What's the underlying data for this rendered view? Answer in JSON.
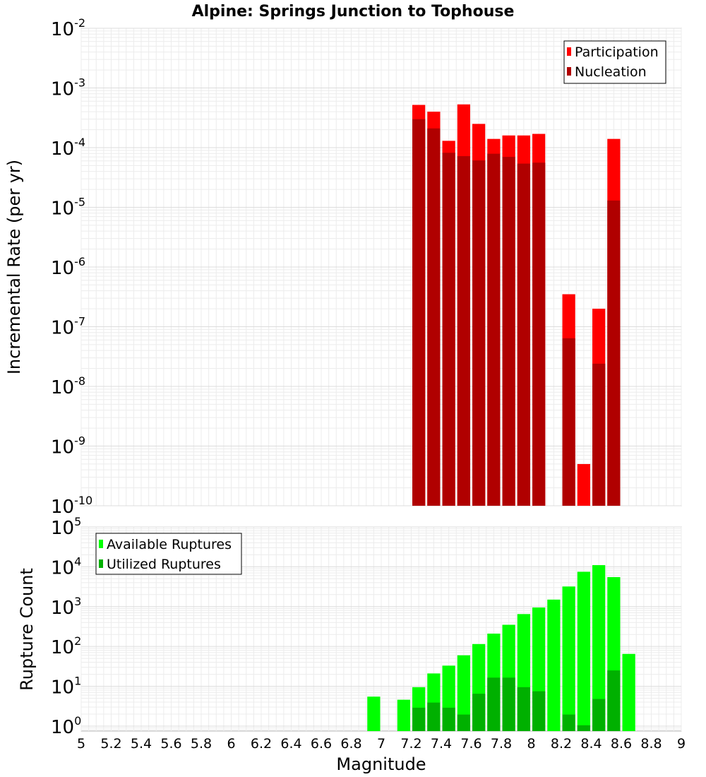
{
  "chart_data": [
    {
      "type": "bar",
      "title": "Alpine: Springs Junction to Tophouse",
      "xlabel": "",
      "ylabel": "Incremental Rate (per yr)",
      "yscale": "log",
      "ylim": [
        1e-10,
        0.01
      ],
      "xlim": [
        5,
        9
      ],
      "grid": true,
      "legend_position": "top-right",
      "bin_width": 0.1,
      "series": [
        {
          "name": "Participation",
          "color": "#ff0000",
          "points": [
            {
              "x": 7.25,
              "y": 0.00052
            },
            {
              "x": 7.35,
              "y": 0.0004
            },
            {
              "x": 7.45,
              "y": 0.00013
            },
            {
              "x": 7.55,
              "y": 0.00053
            },
            {
              "x": 7.65,
              "y": 0.00025
            },
            {
              "x": 7.75,
              "y": 0.00014
            },
            {
              "x": 7.85,
              "y": 0.00016
            },
            {
              "x": 7.95,
              "y": 0.00016
            },
            {
              "x": 8.05,
              "y": 0.00017
            },
            {
              "x": 8.25,
              "y": 3.5e-07
            },
            {
              "x": 8.35,
              "y": 5e-10
            },
            {
              "x": 8.45,
              "y": 2e-07
            },
            {
              "x": 8.55,
              "y": 0.00014
            }
          ]
        },
        {
          "name": "Nucleation",
          "color": "#b00000",
          "points": [
            {
              "x": 7.25,
              "y": 0.0003
            },
            {
              "x": 7.35,
              "y": 0.00021
            },
            {
              "x": 7.45,
              "y": 8.2e-05
            },
            {
              "x": 7.55,
              "y": 7.2e-05
            },
            {
              "x": 7.65,
              "y": 6.1e-05
            },
            {
              "x": 7.75,
              "y": 7.9e-05
            },
            {
              "x": 7.85,
              "y": 7e-05
            },
            {
              "x": 7.95,
              "y": 5.4e-05
            },
            {
              "x": 8.05,
              "y": 5.6e-05
            },
            {
              "x": 8.25,
              "y": 6.4e-08
            },
            {
              "x": 8.45,
              "y": 2.4e-08
            },
            {
              "x": 8.55,
              "y": 1.3e-05
            }
          ]
        }
      ]
    },
    {
      "type": "bar",
      "title": "",
      "xlabel": "Magnitude",
      "ylabel": "Rupture Count",
      "yscale": "log",
      "ylim": [
        0.75,
        100000
      ],
      "xlim": [
        5,
        9
      ],
      "grid": true,
      "legend_position": "top-left",
      "bin_width": 0.1,
      "series": [
        {
          "name": "Available Ruptures",
          "color": "#00ff00",
          "points": [
            {
              "x": 6.95,
              "y": 5.5
            },
            {
              "x": 7.15,
              "y": 4.6
            },
            {
              "x": 7.25,
              "y": 9.5
            },
            {
              "x": 7.35,
              "y": 21
            },
            {
              "x": 7.45,
              "y": 33
            },
            {
              "x": 7.55,
              "y": 60
            },
            {
              "x": 7.65,
              "y": 115
            },
            {
              "x": 7.75,
              "y": 210
            },
            {
              "x": 7.85,
              "y": 350
            },
            {
              "x": 7.95,
              "y": 650
            },
            {
              "x": 8.05,
              "y": 950
            },
            {
              "x": 8.15,
              "y": 1500
            },
            {
              "x": 8.25,
              "y": 3200
            },
            {
              "x": 8.35,
              "y": 7500
            },
            {
              "x": 8.45,
              "y": 11000
            },
            {
              "x": 8.55,
              "y": 5500
            },
            {
              "x": 8.65,
              "y": 65
            }
          ]
        },
        {
          "name": "Utilized Ruptures",
          "color": "#00b000",
          "points": [
            {
              "x": 7.25,
              "y": 2.9
            },
            {
              "x": 7.35,
              "y": 3.9
            },
            {
              "x": 7.45,
              "y": 2.9
            },
            {
              "x": 7.55,
              "y": 1.95
            },
            {
              "x": 7.65,
              "y": 6.5
            },
            {
              "x": 7.75,
              "y": 16.5
            },
            {
              "x": 7.85,
              "y": 16.5
            },
            {
              "x": 7.95,
              "y": 9.5
            },
            {
              "x": 8.05,
              "y": 7.5
            },
            {
              "x": 8.25,
              "y": 1.95
            },
            {
              "x": 8.35,
              "y": 1.05
            },
            {
              "x": 8.45,
              "y": 4.8
            },
            {
              "x": 8.55,
              "y": 25
            }
          ]
        }
      ],
      "xticks": [
        "5",
        "5.2",
        "5.4",
        "5.6",
        "5.8",
        "6",
        "6.2",
        "6.4",
        "6.6",
        "6.8",
        "7",
        "7.2",
        "7.4",
        "7.6",
        "7.8",
        "8",
        "8.2",
        "8.4",
        "8.6",
        "8.8",
        "9"
      ]
    }
  ],
  "top_yticks": [
    {
      "base": "10",
      "exp": "-2"
    },
    {
      "base": "10",
      "exp": "-3"
    },
    {
      "base": "10",
      "exp": "-4"
    },
    {
      "base": "10",
      "exp": "-5"
    },
    {
      "base": "10",
      "exp": "-6"
    },
    {
      "base": "10",
      "exp": "-7"
    },
    {
      "base": "10",
      "exp": "-8"
    },
    {
      "base": "10",
      "exp": "-9"
    },
    {
      "base": "10",
      "exp": "-10"
    }
  ],
  "bottom_yticks": [
    {
      "base": "10",
      "exp": "5"
    },
    {
      "base": "10",
      "exp": "4"
    },
    {
      "base": "10",
      "exp": "3"
    },
    {
      "base": "10",
      "exp": "2"
    },
    {
      "base": "10",
      "exp": "1"
    },
    {
      "base": "10",
      "exp": "0"
    }
  ]
}
